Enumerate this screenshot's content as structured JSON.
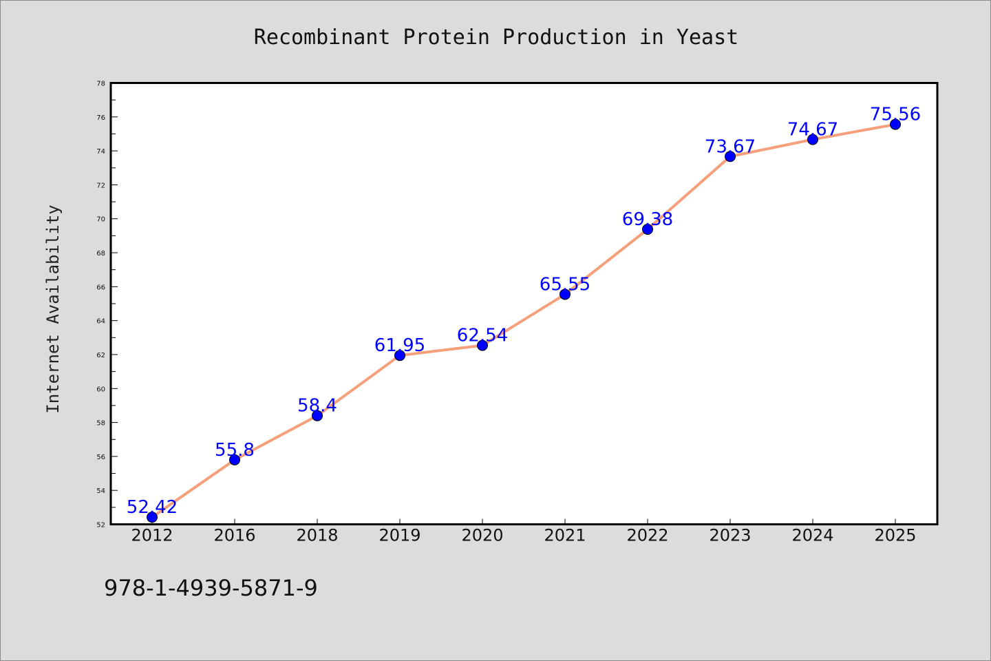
{
  "chart_data": {
    "type": "line",
    "title": "Recombinant Protein Production in Yeast",
    "xlabel": "",
    "ylabel": "Internet Availability",
    "categories": [
      "2012",
      "2016",
      "2018",
      "2019",
      "2020",
      "2021",
      "2022",
      "2023",
      "2024",
      "2025"
    ],
    "series": [
      {
        "values": [
          52.42,
          55.8,
          58.4,
          61.95,
          62.54,
          65.55,
          69.38,
          73.67,
          74.67,
          75.56
        ],
        "data_labels": [
          "52.42",
          "55.8",
          "58.4",
          "61.95",
          "62.54",
          "65.55",
          "69.38",
          "73.67",
          "74.67",
          "75.56"
        ],
        "line_color": "#f5a07a",
        "marker_color": "#0000ff"
      }
    ],
    "ylim": [
      52,
      78
    ],
    "yticks": [
      "52",
      "54",
      "56",
      "58",
      "60",
      "62",
      "64",
      "66",
      "68",
      "70",
      "72",
      "74",
      "76",
      "78"
    ],
    "grid": false,
    "legend": "none"
  },
  "footer": {
    "isbn": "978-1-4939-5871-9"
  },
  "colors": {
    "background": "#dcdcdc",
    "plot_background": "#ffffff",
    "label_color": "#0000ff"
  }
}
